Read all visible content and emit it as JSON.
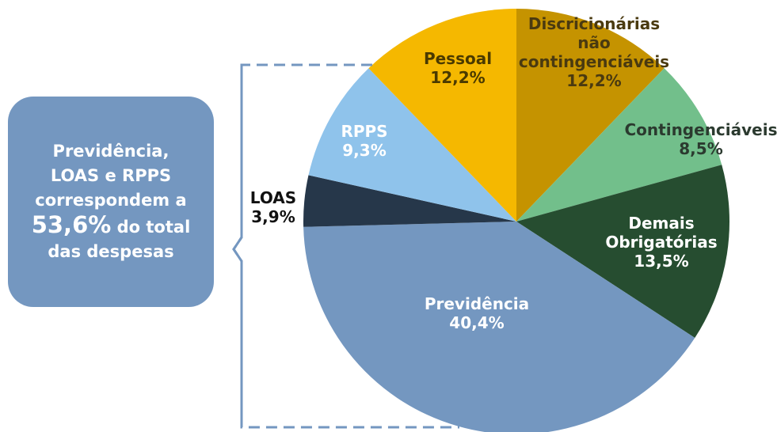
{
  "chart_data": {
    "type": "pie",
    "categories": [
      "Discricionárias não contingenciáveis",
      "Contingenciáveis",
      "Demais Obrigatórias",
      "Previdência",
      "LOAS",
      "RPPS",
      "Pessoal"
    ],
    "values": [
      12.2,
      8.5,
      13.5,
      40.4,
      3.9,
      9.3,
      12.2
    ],
    "value_labels": [
      "12,2%",
      "8,5%",
      "13,5%",
      "40,4%",
      "3,9%",
      "9,3%",
      "12,2%"
    ],
    "colors": [
      "#c59300",
      "#72bf8b",
      "#264d30",
      "#7497c0",
      "#26374a",
      "#8fc3eb",
      "#f5b800"
    ],
    "annotation": {
      "lines": [
        "Previdência,",
        "LOAS e RPPS",
        "correspondem a"
      ],
      "highlight": "53,6%",
      "highlight_rest": "do total",
      "last_line": "das despesas"
    }
  }
}
